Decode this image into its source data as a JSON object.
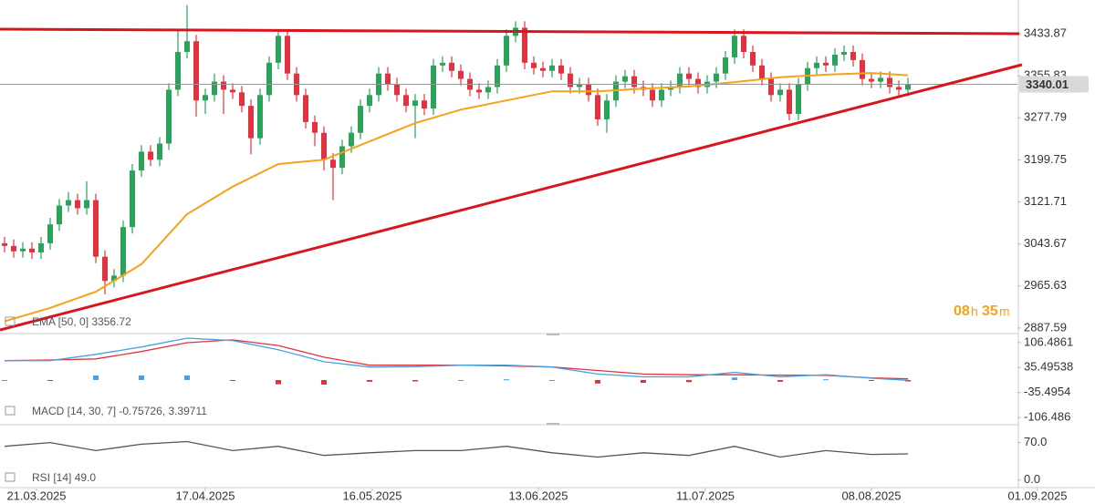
{
  "chart_data": [
    {
      "type": "candlestick",
      "legend": "EMA [50, 0] 3356.72",
      "open": [
        3045,
        3040,
        3030,
        3035,
        3028,
        3045,
        3080,
        3115,
        3125,
        3110,
        3125,
        3020,
        2975,
        2985,
        3075,
        3180,
        3215,
        3200,
        3230,
        3330,
        3400,
        3420,
        3310,
        3320,
        3345,
        3330,
        3325,
        3300,
        3240,
        3320,
        3380,
        3430,
        3360,
        3320,
        3270,
        3250,
        3200,
        3185,
        3225,
        3250,
        3300,
        3320,
        3360,
        3340,
        3320,
        3300,
        3310,
        3295,
        3375,
        3380,
        3365,
        3350,
        3330,
        3325,
        3335,
        3375,
        3430,
        3445,
        3380,
        3370,
        3365,
        3375,
        3360,
        3335,
        3340,
        3320,
        3275,
        3310,
        3345,
        3355,
        3335,
        3330,
        3310,
        3330,
        3335,
        3360,
        3350,
        3335,
        3345,
        3360,
        3390,
        3430,
        3400,
        3375,
        3350,
        3320,
        3330,
        3285,
        3340,
        3370,
        3380,
        3375,
        3395,
        3400,
        3385,
        3350,
        3345,
        3352,
        3335,
        3330
      ],
      "high": [
        3057,
        3052,
        3047,
        3047,
        3057,
        3092,
        3127,
        3140,
        3137,
        3160,
        3137,
        3032,
        2997,
        3087,
        3192,
        3227,
        3227,
        3242,
        3342,
        3440,
        3487,
        3432,
        3332,
        3360,
        3357,
        3342,
        3337,
        3312,
        3332,
        3392,
        3442,
        3442,
        3372,
        3332,
        3282,
        3262,
        3212,
        3237,
        3262,
        3312,
        3332,
        3372,
        3372,
        3352,
        3332,
        3322,
        3322,
        3387,
        3392,
        3392,
        3377,
        3362,
        3342,
        3347,
        3387,
        3442,
        3457,
        3457,
        3392,
        3382,
        3387,
        3387,
        3372,
        3352,
        3352,
        3332,
        3322,
        3357,
        3367,
        3367,
        3347,
        3342,
        3342,
        3347,
        3372,
        3372,
        3362,
        3357,
        3372,
        3402,
        3442,
        3442,
        3412,
        3387,
        3362,
        3342,
        3342,
        3352,
        3382,
        3392,
        3392,
        3407,
        3412,
        3412,
        3397,
        3362,
        3364,
        3364,
        3347,
        3352
      ],
      "low": [
        3028,
        3018,
        3018,
        3016,
        3016,
        3033,
        3068,
        3103,
        3098,
        3098,
        3008,
        2950,
        2963,
        2973,
        3063,
        3168,
        3188,
        3188,
        3218,
        3318,
        3388,
        3280,
        3285,
        3308,
        3285,
        3313,
        3288,
        3210,
        3228,
        3308,
        3368,
        3348,
        3308,
        3258,
        3225,
        3180,
        3125,
        3173,
        3213,
        3238,
        3288,
        3308,
        3328,
        3308,
        3288,
        3240,
        3283,
        3283,
        3363,
        3353,
        3338,
        3318,
        3313,
        3313,
        3323,
        3363,
        3418,
        3368,
        3358,
        3353,
        3353,
        3348,
        3323,
        3323,
        3308,
        3263,
        3250,
        3298,
        3333,
        3323,
        3318,
        3298,
        3298,
        3318,
        3323,
        3338,
        3323,
        3323,
        3333,
        3348,
        3378,
        3388,
        3363,
        3338,
        3308,
        3308,
        3273,
        3273,
        3328,
        3358,
        3363,
        3363,
        3383,
        3373,
        3338,
        3333,
        3333,
        3323,
        3318,
        3318
      ],
      "close": [
        3040,
        3030,
        3035,
        3028,
        3045,
        3080,
        3115,
        3125,
        3110,
        3125,
        3020,
        2975,
        2985,
        3075,
        3180,
        3215,
        3200,
        3230,
        3330,
        3400,
        3420,
        3310,
        3320,
        3345,
        3330,
        3325,
        3300,
        3240,
        3320,
        3380,
        3430,
        3360,
        3320,
        3270,
        3250,
        3200,
        3185,
        3225,
        3250,
        3300,
        3320,
        3360,
        3340,
        3320,
        3300,
        3310,
        3295,
        3375,
        3380,
        3365,
        3350,
        3330,
        3325,
        3335,
        3375,
        3430,
        3445,
        3380,
        3370,
        3365,
        3375,
        3360,
        3335,
        3340,
        3320,
        3275,
        3310,
        3345,
        3355,
        3335,
        3330,
        3310,
        3330,
        3335,
        3360,
        3350,
        3335,
        3345,
        3360,
        3390,
        3430,
        3400,
        3375,
        3350,
        3320,
        3330,
        3285,
        3340,
        3370,
        3380,
        3375,
        3395,
        3400,
        3385,
        3350,
        3345,
        3352,
        3335,
        3330,
        3340.01
      ],
      "up_color": "#2ba35a",
      "down_color": "#e2323f",
      "ema": {
        "color": "#f5a21c",
        "index": [
          0,
          5,
          10,
          15,
          20,
          25,
          30,
          35,
          40,
          45,
          50,
          55,
          60,
          65,
          70,
          75,
          80,
          85,
          90,
          95,
          99
        ],
        "values": [
          2900,
          2925,
          2955,
          3006,
          3099,
          3150,
          3192,
          3200,
          3234,
          3268,
          3293,
          3310,
          3327,
          3327,
          3332,
          3336,
          3344,
          3353,
          3358,
          3361,
          3356.72
        ]
      },
      "xlim": [
        -0.5,
        111
      ],
      "xticks": [
        {
          "value": 3.5,
          "label": "21.03.2025"
        },
        {
          "value": 22,
          "label": "17.04.2025"
        },
        {
          "value": 40.3,
          "label": "16.05.2025"
        },
        {
          "value": 58.5,
          "label": "13.06.2025"
        },
        {
          "value": 76.8,
          "label": "11.07.2025"
        },
        {
          "value": 95,
          "label": "08.08.2025"
        },
        {
          "value": 113.2,
          "label": "01.09.2025"
        }
      ],
      "ylim": [
        2879,
        3496.5
      ],
      "yticks": [
        3433.87,
        3355.83,
        3277.79,
        3199.75,
        3121.71,
        3043.67,
        2965.63,
        2887.59
      ],
      "countdown": {
        "hours": "08",
        "hours_unit": "h",
        "minutes": "35",
        "minutes_unit": "m"
      }
    },
    {
      "type": "macd",
      "legend": "MACD [14, 30, 7] -0.75726, 3.39711",
      "index": [
        0,
        5,
        10,
        15,
        20,
        25,
        30,
        35,
        40,
        45,
        50,
        55,
        60,
        65,
        70,
        75,
        80,
        85,
        90,
        95,
        99
      ],
      "macd": [
        55,
        55,
        73,
        94,
        119,
        112,
        86,
        52,
        37,
        38,
        42,
        42,
        37,
        17,
        9,
        9,
        22,
        9,
        15,
        5,
        -0.75726
      ],
      "signal": [
        55,
        57,
        60,
        81,
        106,
        114,
        98,
        65,
        42,
        42,
        42,
        40,
        37,
        27,
        17,
        15,
        15,
        14,
        13,
        6,
        3.39711
      ],
      "histogram": [
        0,
        -2,
        13,
        13,
        13,
        -2,
        -12,
        -13,
        -5,
        -4,
        0,
        2,
        0,
        -10,
        -8,
        -6,
        7,
        -5,
        2,
        -1,
        -4.15437
      ],
      "macd_color": "#4a9fe0",
      "signal_color": "#e2323f",
      "ylim": [
        -127,
        132
      ],
      "yticks": [
        106.4861,
        35.49538,
        -35.4954,
        -106.486
      ]
    },
    {
      "type": "line",
      "legend": "RSI [14] 49.0",
      "index": [
        0,
        5,
        10,
        15,
        20,
        25,
        30,
        35,
        40,
        45,
        50,
        55,
        60,
        65,
        70,
        75,
        80,
        85,
        90,
        95,
        99
      ],
      "values": [
        63,
        70,
        55,
        67,
        72,
        55,
        63,
        46,
        51,
        55,
        55,
        63,
        51,
        43,
        51,
        46,
        63,
        43,
        55,
        48,
        49
      ],
      "color": "#555555",
      "ylim": [
        -14,
        100
      ],
      "yticks": [
        {
          "value": 70,
          "label": "70.0"
        },
        {
          "value": 0,
          "label": "0.0"
        }
      ]
    }
  ]
}
